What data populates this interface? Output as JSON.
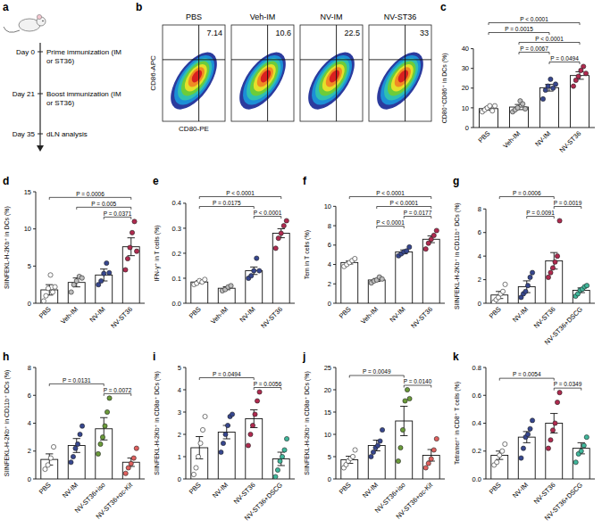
{
  "timeline": {
    "panel": "a",
    "events": [
      {
        "day": "Day 0",
        "text": "Prime immunization (IM or ST36)"
      },
      {
        "day": "Day 21",
        "text": "Boost immunization (IM or ST36)"
      },
      {
        "day": "Day 35",
        "text": "dLN analysis"
      }
    ]
  },
  "flow_plots": {
    "panel": "b",
    "x_label": "CD80-PE",
    "y_label": "CD86-APC",
    "plots": [
      {
        "title": "PBS",
        "value": 7.14
      },
      {
        "title": "Veh-IM",
        "value": 10.6
      },
      {
        "title": "NV-IM",
        "value": 22.5
      },
      {
        "title": "NV-ST36",
        "value": 33
      }
    ]
  },
  "chart_data": [
    {
      "type": "bar",
      "panel": "c",
      "y_label": "CD80⁺CD86⁺ in DCs (%)",
      "categories": [
        "PBS",
        "Veh-IM",
        "NV-IM",
        "NV-ST36"
      ],
      "values": [
        9.6,
        10.4,
        20.2,
        26.4
      ],
      "errors": [
        0.8,
        1.3,
        1.7,
        1.9
      ],
      "points": [
        [
          8,
          9,
          10,
          11,
          8.5,
          11
        ],
        [
          8,
          9,
          10,
          13.5,
          12,
          9.5
        ],
        [
          14.5,
          19,
          21,
          24.5,
          20,
          22
        ],
        [
          21,
          24,
          26,
          29,
          31,
          27.5
        ]
      ],
      "colors": [
        "#ffffff",
        "#bdbdbd",
        "#37478f",
        "#b02a4f"
      ],
      "ylim": [
        0,
        40
      ],
      "yticks": [
        0,
        10,
        20,
        30,
        40
      ],
      "annotations": [
        {
          "text": "P < 0.0001",
          "from": "PBS",
          "to": "NV-ST36"
        },
        {
          "text": "P < 0.0001",
          "from": "Veh-IM",
          "to": "NV-ST36"
        },
        {
          "text": "P = 0.0015",
          "from": "PBS",
          "to": "NV-IM"
        },
        {
          "text": "P = 0.0494",
          "from": "NV-IM",
          "to": "NV-ST36"
        },
        {
          "text": "P = 0.0067",
          "from": "Veh-IM",
          "to": "NV-IM"
        }
      ]
    },
    {
      "type": "bar",
      "panel": "d",
      "y_label": "SIINFEKL-H-2Kb⁺ in DCs (%)",
      "categories": [
        "PBS",
        "Veh-IM",
        "NV-IM",
        "NV-ST36"
      ],
      "values": [
        1.8,
        2.8,
        3.8,
        7.6
      ],
      "errors": [
        0.7,
        0.6,
        0.8,
        1.2
      ],
      "points": [
        [
          0.3,
          1,
          2,
          3.8,
          1.5,
          2.2
        ],
        [
          1.5,
          2.5,
          3,
          3.6,
          3.4
        ],
        [
          2.5,
          3,
          4,
          5.4,
          4.1
        ],
        [
          4.5,
          6,
          7.5,
          9.5,
          11,
          7
        ]
      ],
      "colors": [
        "#ffffff",
        "#bdbdbd",
        "#37478f",
        "#b02a4f"
      ],
      "ylim": [
        0,
        15
      ],
      "yticks": [
        0,
        5,
        10,
        15
      ],
      "annotations": [
        {
          "text": "P = 0.0006",
          "from": "PBS",
          "to": "NV-ST36"
        },
        {
          "text": "P = 0.005",
          "from": "Veh-IM",
          "to": "NV-ST36"
        },
        {
          "text": "P = 0.0371",
          "from": "NV-IM",
          "to": "NV-ST36"
        }
      ]
    },
    {
      "type": "bar",
      "panel": "e",
      "y_label": "IFN-γ⁺ in T cells (%)",
      "categories": [
        "PBS",
        "Veh-IM",
        "NV-IM",
        "NV-ST36"
      ],
      "values": [
        0.085,
        0.06,
        0.13,
        0.28
      ],
      "errors": [
        0.005,
        0.006,
        0.015,
        0.018
      ],
      "points": [
        [
          0.075,
          0.08,
          0.09,
          0.085,
          0.095
        ],
        [
          0.05,
          0.055,
          0.065,
          0.07
        ],
        [
          0.1,
          0.11,
          0.13,
          0.18,
          0.13
        ],
        [
          0.22,
          0.26,
          0.28,
          0.31,
          0.33
        ]
      ],
      "colors": [
        "#ffffff",
        "#bdbdbd",
        "#37478f",
        "#b02a4f"
      ],
      "ylim": [
        0,
        0.4
      ],
      "yticks": [
        {
          "value": 0,
          "label": "0.0"
        },
        0.1,
        0.2,
        0.3,
        0.4
      ],
      "annotations": [
        {
          "text": "P < 0.0001",
          "from": "PBS",
          "to": "NV-ST36"
        },
        {
          "text": "P = 0.0175",
          "from": "PBS",
          "to": "NV-IM"
        },
        {
          "text": "P < 0.0001",
          "from": "NV-IM",
          "to": "NV-ST36"
        }
      ]
    },
    {
      "type": "bar",
      "panel": "f",
      "y_label": "Tem in T cells (%)",
      "categories": [
        "PBS",
        "Veh-IM",
        "NV-IM",
        "NV-ST36"
      ],
      "values": [
        4.2,
        2.4,
        5.3,
        6.6
      ],
      "errors": [
        0.15,
        0.15,
        0.2,
        0.35
      ],
      "points": [
        [
          3.8,
          4,
          4.2,
          4.4,
          4.6
        ],
        [
          2.1,
          2.3,
          2.4,
          2.7,
          2.5
        ],
        [
          4.9,
          5.1,
          5.3,
          5.4,
          5.8
        ],
        [
          5.6,
          6.2,
          6.6,
          7,
          7.5
        ]
      ],
      "colors": [
        "#ffffff",
        "#bdbdbd",
        "#37478f",
        "#b02a4f"
      ],
      "ylim": [
        0,
        10
      ],
      "yticks": [
        0,
        2,
        4,
        6,
        8,
        10
      ],
      "annotations": [
        {
          "text": "P < 0.0001",
          "from": "PBS",
          "to": "NV-ST36"
        },
        {
          "text": "P < 0.0001",
          "from": "Veh-IM",
          "to": "NV-ST36"
        },
        {
          "text": "P < 0.0001",
          "from": "Veh-IM",
          "to": "NV-IM"
        },
        {
          "text": "P = 0.0177",
          "from": "NV-IM",
          "to": "NV-ST36"
        }
      ]
    },
    {
      "type": "bar",
      "panel": "g",
      "y_label": "SIINFEKL-H-2Kb⁺ in CD11b⁺ DCs (%)",
      "categories": [
        "PBS",
        "NV-IM",
        "NV-ST36",
        "NV-ST36+DSCG"
      ],
      "values": [
        0.7,
        1.4,
        3.6,
        1.1
      ],
      "errors": [
        0.3,
        0.5,
        0.7,
        0.2
      ],
      "points": [
        [
          0.1,
          0.3,
          0.5,
          0.8,
          1,
          1.6
        ],
        [
          0.5,
          0.8,
          1,
          1.5,
          2.2,
          2.6
        ],
        [
          2.2,
          2.6,
          3,
          3.5,
          4,
          7
        ],
        [
          0.6,
          0.8,
          1.1,
          1.2,
          1.4,
          1.5
        ]
      ],
      "colors": [
        "#ffffff",
        "#37478f",
        "#b02a4f",
        "#3fb79b"
      ],
      "ylim": [
        0,
        8
      ],
      "yticks": [
        0,
        2,
        4,
        6,
        8
      ],
      "annotations": [
        {
          "text": "P = 0.0006",
          "from": "PBS",
          "to": "NV-ST36"
        },
        {
          "text": "P = 0.0091",
          "from": "NV-IM",
          "to": "NV-ST36"
        },
        {
          "text": "P = 0.0019",
          "from": "NV-ST36",
          "to": "NV-ST36+DSCG"
        }
      ]
    },
    {
      "type": "bar",
      "panel": "h",
      "y_label": "SIINFEKL-H-2Kb⁺ in CD11b⁺ DCs (%)",
      "categories": [
        "PBS",
        "NV-IM",
        "NV-ST36+iso",
        "NV-ST36+αc-Kit"
      ],
      "values": [
        1.4,
        2.4,
        3.6,
        1.2
      ],
      "errors": [
        0.4,
        0.5,
        0.8,
        0.3
      ],
      "points": [
        [
          0.7,
          1,
          1.5,
          2.3
        ],
        [
          1.2,
          1.6,
          2.2,
          2.5,
          3.2,
          3.8
        ],
        [
          1.8,
          2.5,
          3,
          3.8,
          4.8,
          5.8
        ],
        [
          0.4,
          0.8,
          1.1,
          1.5,
          2.2
        ]
      ],
      "colors": [
        "#ffffff",
        "#37478f",
        "#6b9b3a",
        "#e0605e"
      ],
      "ylim": [
        0,
        8
      ],
      "yticks": [
        0,
        2,
        4,
        6,
        8
      ],
      "annotations": [
        {
          "text": "P = 0.0131",
          "from": "PBS",
          "to": "NV-ST36+iso"
        },
        {
          "text": "P = 0.0072",
          "from": "NV-ST36+iso",
          "to": "NV-ST36+αc-Kit"
        }
      ]
    },
    {
      "type": "bar",
      "panel": "i",
      "y_label": "SIINFEKL-H-2Kb⁺ in CD8α⁺ DCs (%)",
      "categories": [
        "PBS",
        "NV-IM",
        "NV-ST36",
        "NV-ST36+DSCG"
      ],
      "values": [
        1.4,
        2.1,
        2.7,
        0.9
      ],
      "errors": [
        0.5,
        0.3,
        0.4,
        0.3
      ],
      "points": [
        [
          0.2,
          0.5,
          1,
          1.6,
          2.2,
          2.8
        ],
        [
          1.2,
          1.6,
          2,
          2.4,
          2.8,
          2.9
        ],
        [
          1.5,
          2,
          2.4,
          2.9,
          3.5,
          3.9
        ],
        [
          0.1,
          0.4,
          0.8,
          1,
          1.3,
          1.8
        ]
      ],
      "colors": [
        "#ffffff",
        "#37478f",
        "#b02a4f",
        "#3fb79b"
      ],
      "ylim": [
        0,
        5
      ],
      "yticks": [
        0,
        1,
        2,
        3,
        4,
        5
      ],
      "annotations": [
        {
          "text": "P = 0.0494",
          "from": "PBS",
          "to": "NV-ST36"
        },
        {
          "text": "P = 0.0056",
          "from": "NV-ST36",
          "to": "NV-ST36+DSCG"
        }
      ]
    },
    {
      "type": "bar",
      "panel": "j",
      "y_label": "SIINFEKL-H-2Kb⁺ in CD8α⁺ DCs (%)",
      "categories": [
        "PBS",
        "NV-IM",
        "NV-ST36+iso",
        "NV-ST36+αc-Kit"
      ],
      "values": [
        4.3,
        7.5,
        13,
        5.3
      ],
      "errors": [
        0.8,
        1.2,
        3.3,
        1.3
      ],
      "points": [
        [
          2.5,
          3.2,
          4,
          4.6,
          5,
          6.5
        ],
        [
          5,
          6,
          7,
          7.5,
          8.5,
          11
        ],
        [
          4,
          7,
          11,
          17.5,
          20,
          18
        ],
        [
          2.5,
          3.5,
          4.5,
          6.5,
          9
        ]
      ],
      "colors": [
        "#ffffff",
        "#37478f",
        "#6b9b3a",
        "#e0605e"
      ],
      "ylim": [
        0,
        25
      ],
      "yticks": [
        0,
        5,
        10,
        15,
        20,
        25
      ],
      "annotations": [
        {
          "text": "P = 0.0049",
          "from": "PBS",
          "to": "NV-ST36+iso"
        },
        {
          "text": "P = 0.0140",
          "from": "NV-ST36+iso",
          "to": "NV-ST36+αc-Kit"
        }
      ]
    },
    {
      "type": "bar",
      "panel": "k",
      "y_label": "Tetramer⁺ in CD8⁺ T cells (%)",
      "categories": [
        "PBS",
        "NV-IM",
        "NV-ST36",
        "NV-ST36+DSCG"
      ],
      "values": [
        0.17,
        0.3,
        0.4,
        0.22
      ],
      "errors": [
        0.03,
        0.04,
        0.07,
        0.04
      ],
      "points": [
        [
          0.1,
          0.12,
          0.17,
          0.2,
          0.25
        ],
        [
          0.15,
          0.22,
          0.3,
          0.32,
          0.36,
          0.42
        ],
        [
          0.22,
          0.28,
          0.35,
          0.4,
          0.55,
          0.62
        ],
        [
          0.12,
          0.18,
          0.2,
          0.24,
          0.3
        ]
      ],
      "colors": [
        "#ffffff",
        "#37478f",
        "#b02a4f",
        "#3fb79b"
      ],
      "ylim": [
        0,
        0.8
      ],
      "yticks": [
        {
          "value": 0,
          "label": "0.0"
        },
        0.2,
        0.4,
        0.6,
        0.8
      ],
      "annotations": [
        {
          "text": "P = 0.0054",
          "from": "PBS",
          "to": "NV-ST36"
        },
        {
          "text": "P = 0.0349",
          "from": "NV-ST36",
          "to": "NV-ST36+DSCG"
        }
      ]
    }
  ]
}
